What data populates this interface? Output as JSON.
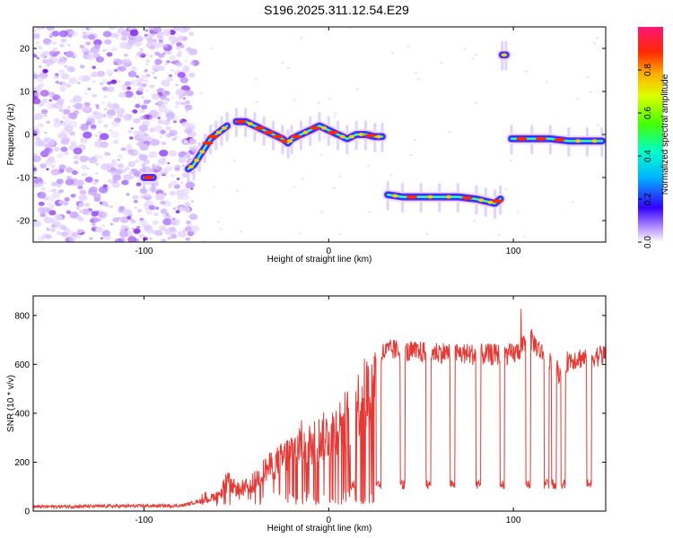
{
  "title": "S196.2025.311.12.54.E29",
  "chart_data": [
    {
      "type": "heatmap",
      "xlabel": "Height of straight line (km)",
      "ylabel": "Frequency (Hz)",
      "xlim": [
        -160,
        150
      ],
      "ylim": [
        -25,
        25
      ],
      "x_ticks": [
        -100,
        0,
        100
      ],
      "y_ticks": [
        -20,
        -10,
        0,
        10,
        20
      ],
      "colorbar": {
        "label": "Normalized spectral amplitude",
        "range": [
          0,
          1
        ],
        "ticks": [
          "0.0",
          "0.2",
          "0.4",
          "0.6",
          "0.8"
        ],
        "tick_values": [
          0.0,
          0.2,
          0.4,
          0.6,
          0.8
        ]
      },
      "noise_region_x": [
        -160,
        -78
      ],
      "track_segments": [
        {
          "x": [
            -100,
            -95
          ],
          "y": [
            -10,
            -10
          ]
        },
        {
          "x": [
            -76,
            -73,
            -70,
            -67,
            -64,
            -61,
            -58,
            -55
          ],
          "y": [
            -8,
            -7,
            -5,
            -3,
            -1,
            0,
            1,
            2
          ]
        },
        {
          "x": [
            -50,
            -45,
            -40,
            -35,
            -30,
            -25,
            -22,
            -20,
            -15,
            -10,
            -5,
            0,
            5,
            10,
            15,
            20,
            25,
            29
          ],
          "y": [
            3,
            3,
            2,
            1,
            0,
            -1,
            -2,
            -1,
            0,
            1,
            2,
            1,
            0,
            -1,
            0,
            0,
            -0.5,
            -0.5
          ]
        },
        {
          "x": [
            32,
            40,
            50,
            60,
            70,
            80,
            85,
            90,
            93
          ],
          "y": [
            -14,
            -14.5,
            -14.5,
            -14.5,
            -14.5,
            -15,
            -15.5,
            -16,
            -15
          ]
        },
        {
          "x": [
            94,
            96
          ],
          "y": [
            18.5,
            18.5
          ]
        },
        {
          "x": [
            99,
            110,
            120,
            130,
            140,
            148
          ],
          "y": [
            -1,
            -1,
            -1,
            -1.5,
            -1.5,
            -1.5
          ]
        }
      ]
    },
    {
      "type": "line",
      "xlabel": "Height of straight line (km)",
      "ylabel": "SNR (10 * v/v)",
      "xlim": [
        -160,
        150
      ],
      "ylim": [
        0,
        880
      ],
      "x_ticks": [
        -100,
        0,
        100
      ],
      "y_ticks": [
        0,
        200,
        400,
        600,
        800
      ],
      "color": "#e53935",
      "envelope": {
        "x": [
          -160,
          -80,
          -70,
          -60,
          -55,
          -50,
          -45,
          -40,
          -35,
          -30,
          -25,
          -20,
          -15,
          -10,
          -5,
          0,
          5,
          10,
          15,
          20,
          25,
          30,
          35,
          40,
          60,
          80,
          100,
          110,
          115,
          120,
          125,
          130,
          150
        ],
        "y": [
          18,
          22,
          40,
          80,
          150,
          110,
          120,
          150,
          200,
          230,
          260,
          300,
          340,
          330,
          360,
          380,
          420,
          460,
          520,
          580,
          620,
          650,
          660,
          650,
          650,
          640,
          640,
          700,
          650,
          620,
          560,
          620,
          640
        ]
      },
      "dropouts_x": [
        13,
        27,
        40,
        54,
        67,
        81,
        94,
        108,
        118,
        122,
        127,
        141
      ],
      "dropout_level": 110
    }
  ]
}
